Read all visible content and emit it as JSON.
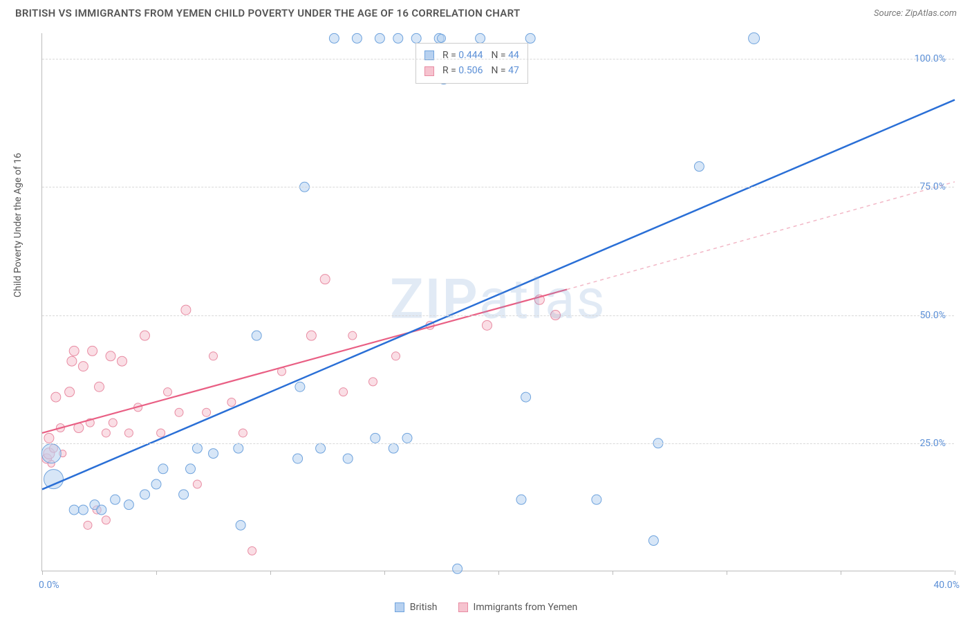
{
  "header": {
    "title": "BRITISH VS IMMIGRANTS FROM YEMEN CHILD POVERTY UNDER THE AGE OF 16 CORRELATION CHART",
    "source": "Source: ZipAtlas.com"
  },
  "chart": {
    "type": "scatter",
    "ylabel": "Child Poverty Under the Age of 16",
    "xlim": [
      0,
      40
    ],
    "ylim": [
      0,
      105
    ],
    "xtick_positions": [
      0,
      5,
      10,
      15,
      20,
      25,
      30,
      35,
      40
    ],
    "xtick_labels": {
      "0": "0.0%",
      "40": "40.0%"
    },
    "ytick_positions": [
      25,
      50,
      75,
      100
    ],
    "ytick_labels": {
      "25": "25.0%",
      "50": "50.0%",
      "75": "75.0%",
      "100": "100.0%"
    },
    "background_color": "#ffffff",
    "grid_color": "#d8d8d8",
    "axis_color": "#bbbbbb",
    "label_fontsize": 14,
    "tick_color": "#5b8fd6",
    "watermark": "ZIPatlas",
    "series": {
      "british": {
        "label": "British",
        "fill": "#b7d1f0",
        "stroke": "#6fa3dd",
        "fill_opacity": 0.55,
        "r_stat": "0.444",
        "n_stat": "44",
        "trend": {
          "x1": 0,
          "y1": 16,
          "x2": 40,
          "y2": 92,
          "color": "#2a6fd6",
          "width": 2.5,
          "dash": "none"
        },
        "points": [
          {
            "x": 0.5,
            "y": 18,
            "r": 14
          },
          {
            "x": 0.4,
            "y": 23,
            "r": 14
          },
          {
            "x": 1.4,
            "y": 12,
            "r": 7
          },
          {
            "x": 1.8,
            "y": 12,
            "r": 7
          },
          {
            "x": 2.3,
            "y": 13,
            "r": 7
          },
          {
            "x": 2.6,
            "y": 12,
            "r": 7
          },
          {
            "x": 3.2,
            "y": 14,
            "r": 7
          },
          {
            "x": 3.8,
            "y": 13,
            "r": 7
          },
          {
            "x": 4.5,
            "y": 15,
            "r": 7
          },
          {
            "x": 5.0,
            "y": 17,
            "r": 7
          },
          {
            "x": 5.3,
            "y": 20,
            "r": 7
          },
          {
            "x": 6.2,
            "y": 15,
            "r": 7
          },
          {
            "x": 6.5,
            "y": 20,
            "r": 7
          },
          {
            "x": 6.8,
            "y": 24,
            "r": 7
          },
          {
            "x": 7.5,
            "y": 23,
            "r": 7
          },
          {
            "x": 8.7,
            "y": 9,
            "r": 7
          },
          {
            "x": 8.6,
            "y": 24,
            "r": 7
          },
          {
            "x": 9.4,
            "y": 46,
            "r": 7
          },
          {
            "x": 11.2,
            "y": 22,
            "r": 7
          },
          {
            "x": 11.3,
            "y": 36,
            "r": 7
          },
          {
            "x": 11.5,
            "y": 75,
            "r": 7
          },
          {
            "x": 12.2,
            "y": 24,
            "r": 7
          },
          {
            "x": 12.8,
            "y": 104,
            "r": 7
          },
          {
            "x": 13.4,
            "y": 22,
            "r": 7
          },
          {
            "x": 13.8,
            "y": 104,
            "r": 7
          },
          {
            "x": 14.6,
            "y": 26,
            "r": 7
          },
          {
            "x": 14.8,
            "y": 104,
            "r": 7
          },
          {
            "x": 15.4,
            "y": 24,
            "r": 7
          },
          {
            "x": 15.6,
            "y": 104,
            "r": 7
          },
          {
            "x": 16.0,
            "y": 26,
            "r": 7
          },
          {
            "x": 16.4,
            "y": 104,
            "r": 7
          },
          {
            "x": 17.6,
            "y": 96,
            "r": 7
          },
          {
            "x": 17.4,
            "y": 104,
            "r": 7
          },
          {
            "x": 17.5,
            "y": 104,
            "r": 6
          },
          {
            "x": 18.2,
            "y": 0.5,
            "r": 7
          },
          {
            "x": 19.2,
            "y": 104,
            "r": 7
          },
          {
            "x": 21.0,
            "y": 14,
            "r": 7
          },
          {
            "x": 21.2,
            "y": 34,
            "r": 7
          },
          {
            "x": 21.4,
            "y": 104,
            "r": 7
          },
          {
            "x": 24.3,
            "y": 14,
            "r": 7
          },
          {
            "x": 26.8,
            "y": 6,
            "r": 7
          },
          {
            "x": 27.0,
            "y": 25,
            "r": 7
          },
          {
            "x": 28.8,
            "y": 79,
            "r": 7
          },
          {
            "x": 31.2,
            "y": 104,
            "r": 8
          }
        ]
      },
      "yemen": {
        "label": "Immigrants from Yemen",
        "fill": "#f6c3cf",
        "stroke": "#e88ba2",
        "fill_opacity": 0.55,
        "r_stat": "0.506",
        "n_stat": "47",
        "trend_solid": {
          "x1": 0,
          "y1": 27,
          "x2": 23,
          "y2": 55,
          "color": "#e95f84",
          "width": 2.2
        },
        "trend_dash": {
          "x1": 23,
          "y1": 55,
          "x2": 40,
          "y2": 76,
          "color": "#f2b7c6",
          "width": 1.5,
          "dash": "5,5"
        },
        "points": [
          {
            "x": 0.2,
            "y": 22,
            "r": 7
          },
          {
            "x": 0.3,
            "y": 23,
            "r": 8
          },
          {
            "x": 0.3,
            "y": 26,
            "r": 7
          },
          {
            "x": 0.4,
            "y": 21,
            "r": 5
          },
          {
            "x": 0.5,
            "y": 24,
            "r": 6
          },
          {
            "x": 0.6,
            "y": 34,
            "r": 7
          },
          {
            "x": 0.8,
            "y": 28,
            "r": 6
          },
          {
            "x": 0.9,
            "y": 23,
            "r": 5
          },
          {
            "x": 1.2,
            "y": 35,
            "r": 7
          },
          {
            "x": 1.3,
            "y": 41,
            "r": 7
          },
          {
            "x": 1.4,
            "y": 43,
            "r": 7
          },
          {
            "x": 1.6,
            "y": 28,
            "r": 7
          },
          {
            "x": 1.8,
            "y": 40,
            "r": 7
          },
          {
            "x": 2.0,
            "y": 9,
            "r": 6
          },
          {
            "x": 2.1,
            "y": 29,
            "r": 6
          },
          {
            "x": 2.2,
            "y": 43,
            "r": 7
          },
          {
            "x": 2.4,
            "y": 12,
            "r": 6
          },
          {
            "x": 2.5,
            "y": 36,
            "r": 7
          },
          {
            "x": 2.8,
            "y": 10,
            "r": 6
          },
          {
            "x": 2.8,
            "y": 27,
            "r": 6
          },
          {
            "x": 3.0,
            "y": 42,
            "r": 7
          },
          {
            "x": 3.1,
            "y": 29,
            "r": 6
          },
          {
            "x": 3.5,
            "y": 41,
            "r": 7
          },
          {
            "x": 3.8,
            "y": 27,
            "r": 6
          },
          {
            "x": 4.2,
            "y": 32,
            "r": 6
          },
          {
            "x": 4.5,
            "y": 46,
            "r": 7
          },
          {
            "x": 5.2,
            "y": 27,
            "r": 6
          },
          {
            "x": 5.5,
            "y": 35,
            "r": 6
          },
          {
            "x": 6.0,
            "y": 31,
            "r": 6
          },
          {
            "x": 6.3,
            "y": 51,
            "r": 7
          },
          {
            "x": 6.8,
            "y": 17,
            "r": 6
          },
          {
            "x": 7.2,
            "y": 31,
            "r": 6
          },
          {
            "x": 7.5,
            "y": 42,
            "r": 6
          },
          {
            "x": 8.3,
            "y": 33,
            "r": 6
          },
          {
            "x": 8.8,
            "y": 27,
            "r": 6
          },
          {
            "x": 9.2,
            "y": 4,
            "r": 6
          },
          {
            "x": 10.5,
            "y": 39,
            "r": 6
          },
          {
            "x": 11.8,
            "y": 46,
            "r": 7
          },
          {
            "x": 12.4,
            "y": 57,
            "r": 7
          },
          {
            "x": 13.2,
            "y": 35,
            "r": 6
          },
          {
            "x": 13.6,
            "y": 46,
            "r": 6
          },
          {
            "x": 14.5,
            "y": 37,
            "r": 6
          },
          {
            "x": 15.5,
            "y": 42,
            "r": 6
          },
          {
            "x": 17.0,
            "y": 48,
            "r": 6
          },
          {
            "x": 19.5,
            "y": 48,
            "r": 7
          },
          {
            "x": 21.8,
            "y": 53,
            "r": 7
          },
          {
            "x": 22.5,
            "y": 50,
            "r": 7
          }
        ]
      }
    },
    "legend_top": {
      "r_label": "R =",
      "n_label": "N ="
    },
    "legend_bottom": {
      "british": "British",
      "yemen": "Immigrants from Yemen"
    }
  }
}
